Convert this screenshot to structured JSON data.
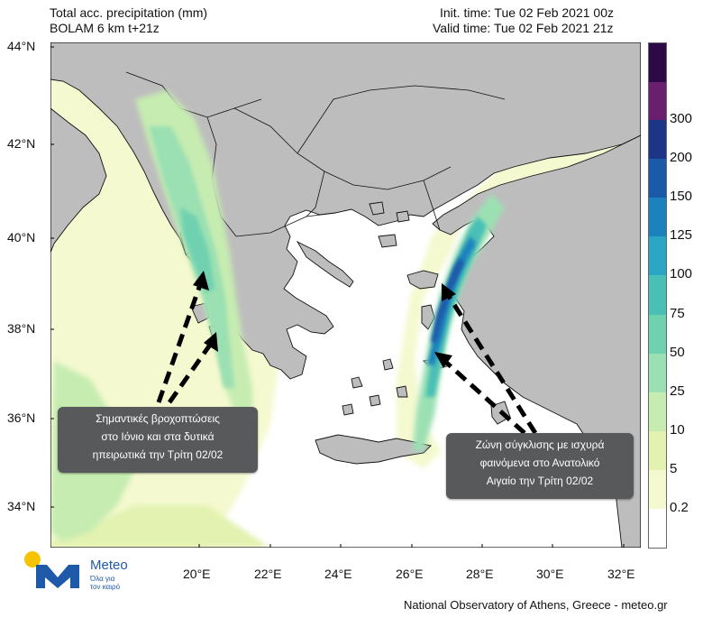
{
  "header": {
    "title_line1": "Total acc. precipitation (mm)",
    "title_line2": "BOLAM 6 km t+21z",
    "init_time": "Init. time: Tue 02 Feb 2021 00z",
    "valid_time": "Valid time: Tue 02 Feb 2021 21z"
  },
  "axes": {
    "lat_labels": [
      "44°N",
      "42°N",
      "40°N",
      "38°N",
      "36°N",
      "34°N"
    ],
    "lon_labels": [
      "20°E",
      "22°E",
      "24°E",
      "26°E",
      "28°E",
      "30°E",
      "32°E"
    ]
  },
  "colorbar": {
    "labels": [
      "0.2",
      "5",
      "10",
      "25",
      "50",
      "75",
      "100",
      "125",
      "150",
      "200",
      "300"
    ],
    "colors": [
      "#f4f9cf",
      "#e3f2b0",
      "#c6ecb1",
      "#9be0b2",
      "#6fd1b0",
      "#49bfb6",
      "#2aa6c4",
      "#1c82bd",
      "#1a5aa9",
      "#1c3587",
      "#6a1f6e",
      "#2d0a45"
    ]
  },
  "annotations": {
    "west": [
      "Σημαντικές βροχοπτώσεις",
      "στο Ιόνιο και στα δυτικά",
      "ηπειρωτικά την Τρίτη 02/02"
    ],
    "east": [
      "Ζώνη σύγκλισης με ισχυρά",
      "φαινόμενα στο Ανατολικό",
      "Αιγαίο την Τρίτη 02/02"
    ]
  },
  "logo": {
    "name": "Meteo",
    "tagline_line1": "Όλα για",
    "tagline_line2": "τον καιρό",
    "brand_color": "#1e5aa8",
    "sun_color": "#f5c400"
  },
  "footer": "National Observatory of Athens, Greece - meteo.gr"
}
